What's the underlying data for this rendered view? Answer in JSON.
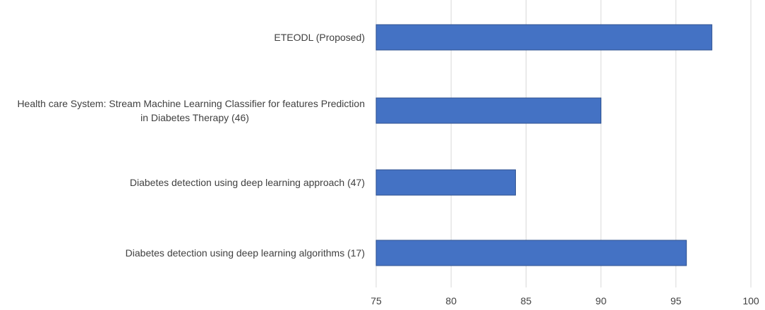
{
  "chart_data": {
    "type": "bar",
    "orientation": "horizontal",
    "categories": [
      [
        "ETEODL (Proposed)"
      ],
      [
        "Health care System: Stream Machine Learning Classifier for features Prediction",
        "in Diabetes Therapy (46)"
      ],
      [
        "Diabetes detection using deep learning approach (47)"
      ],
      [
        "Diabetes detection using deep learning algorithms (17)"
      ]
    ],
    "values": [
      97.4,
      90.0,
      84.3,
      95.7
    ],
    "xlim": [
      75,
      100
    ],
    "xticks": [
      "75",
      "80",
      "85",
      "90",
      "95",
      "100"
    ],
    "grid": true,
    "bar_color": "#4472c4",
    "bar_edge_color": "#2f528f",
    "title": "",
    "xlabel": "",
    "ylabel": ""
  }
}
